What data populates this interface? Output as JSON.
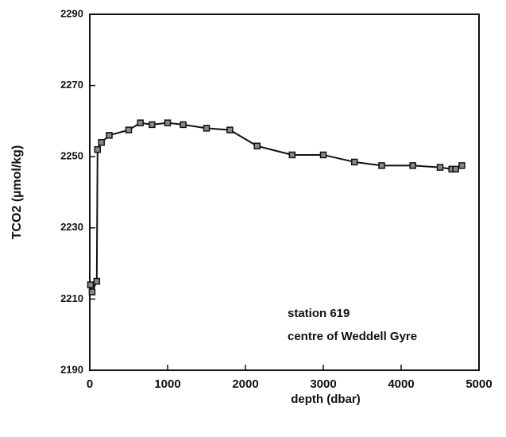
{
  "chart_data": {
    "type": "line",
    "x_label": "depth (dbar)",
    "y_label": "TCO2  (µmol/kg)",
    "annotations": [
      "station 619",
      "centre of Weddell Gyre"
    ],
    "x": [
      10,
      30,
      90,
      100,
      150,
      250,
      500,
      650,
      800,
      1000,
      1200,
      1500,
      1800,
      2150,
      2600,
      3000,
      3400,
      3750,
      4150,
      4500,
      4650,
      4700,
      4780
    ],
    "series": [
      {
        "name": "TCO2",
        "color": "#111111",
        "values": [
          2214,
          2212,
          2215,
          2252,
          2254,
          2256,
          2257.5,
          2259.5,
          2259,
          2259.5,
          2259,
          2258,
          2257.5,
          2253,
          2250.5,
          2250.5,
          2248.5,
          2247.5,
          2247.5,
          2247,
          2246.5,
          2246.5,
          2247.5
        ]
      }
    ],
    "xlim": [
      0,
      5000
    ],
    "xticks": [
      0,
      1000,
      2000,
      3000,
      4000,
      5000
    ],
    "ylim": [
      2190,
      2290
    ],
    "yticks": [
      2190,
      2210,
      2230,
      2250,
      2270,
      2290
    ]
  }
}
